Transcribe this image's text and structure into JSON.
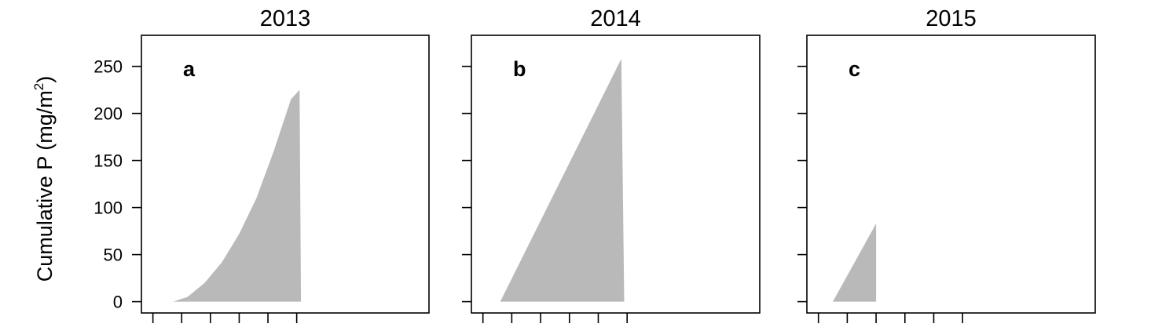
{
  "chart_data": {
    "type": "area",
    "ylabel": "Cumulative P (mg/m²)",
    "ylabel_parts": {
      "main": "Cumulative P",
      "paren_open": "(mg/m",
      "superscript": "2",
      "paren_close": ")"
    },
    "ylim": [
      -12,
      283
    ],
    "yticks": [
      0,
      50,
      100,
      150,
      200,
      250
    ],
    "xlim": [
      0,
      10
    ],
    "xticks": [
      0.4,
      1.4,
      2.4,
      3.4,
      4.4,
      5.4
    ],
    "grid": false,
    "fill_color": "#b9b9b9",
    "panels": [
      {
        "title": "2013",
        "letter": "a",
        "x": [
          1.1,
          1.6,
          2.2,
          2.8,
          3.4,
          4.0,
          4.6,
          5.2,
          5.5,
          5.55
        ],
        "y": [
          0,
          5,
          20,
          42,
          72,
          110,
          160,
          215,
          225,
          0
        ]
      },
      {
        "title": "2014",
        "letter": "b",
        "x": [
          1.0,
          5.2,
          5.3
        ],
        "y": [
          0,
          258,
          0
        ]
      },
      {
        "title": "2015",
        "letter": "c",
        "x": [
          0.9,
          2.4,
          2.4
        ],
        "y": [
          0,
          83,
          0
        ]
      }
    ]
  }
}
